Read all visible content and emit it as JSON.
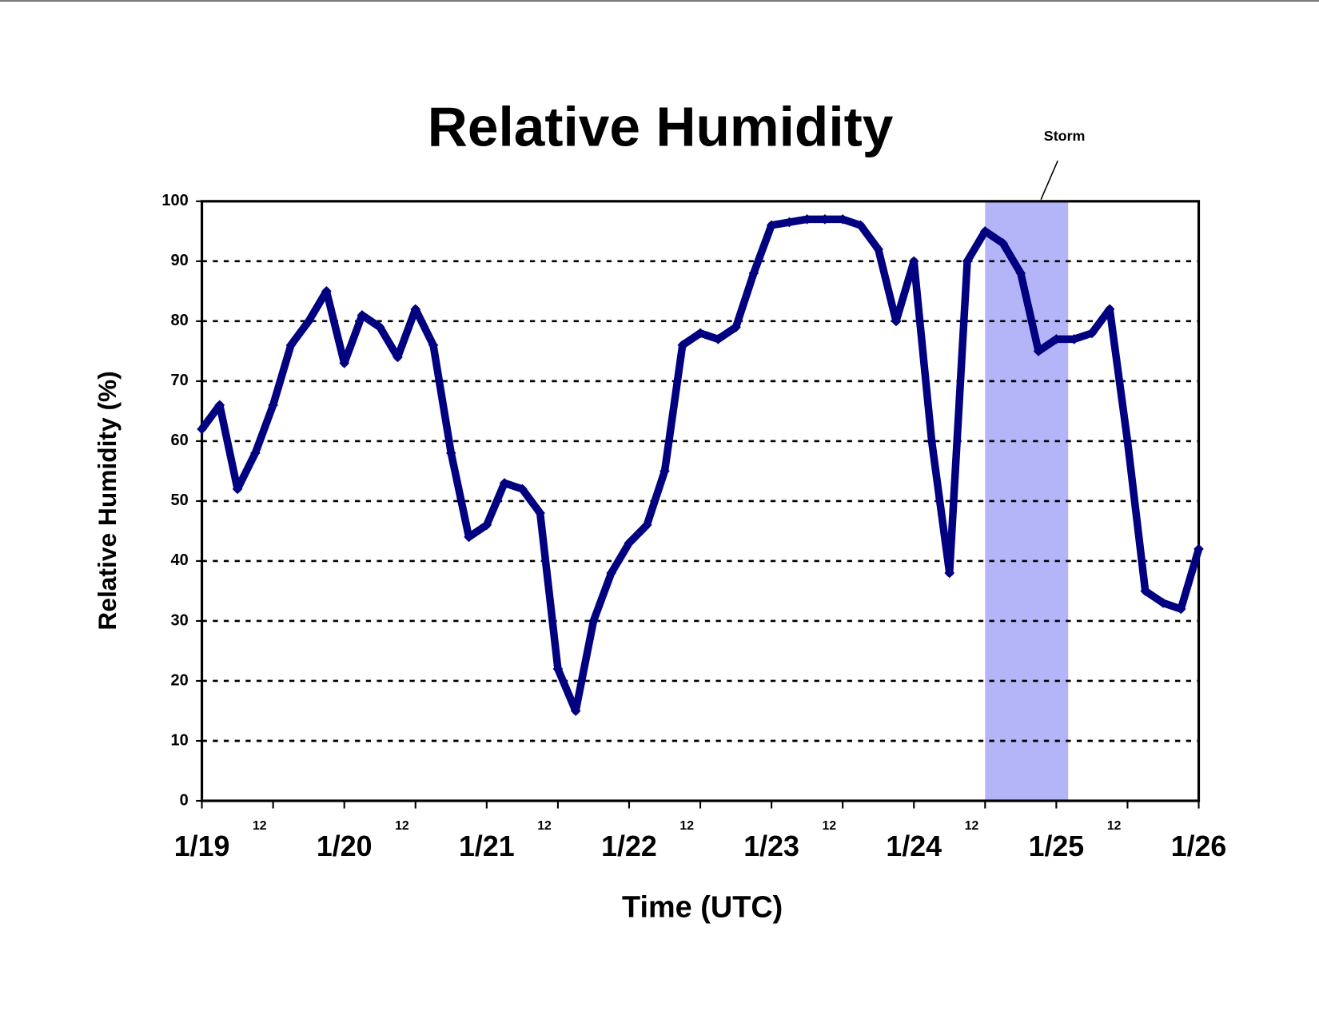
{
  "chart_data": {
    "type": "scatter",
    "title": "Relative Humidity",
    "x_label": "Time (UTC)",
    "y_label": "Relative Humidity (%)",
    "x": [
      0,
      3,
      6,
      9,
      12,
      15,
      18,
      21,
      24,
      27,
      30,
      33,
      36,
      39,
      42,
      45,
      48,
      51,
      54,
      57,
      60,
      63,
      66,
      69,
      72,
      75,
      78,
      81,
      84,
      87,
      90,
      93,
      96,
      99,
      102,
      105,
      108,
      111,
      114,
      117,
      120,
      123,
      126,
      129,
      132,
      135,
      138,
      141,
      144,
      147,
      150,
      153,
      156,
      159,
      162,
      165,
      168
    ],
    "values": [
      62,
      66,
      52,
      58,
      66,
      76,
      80,
      85,
      73,
      81,
      79,
      74,
      82,
      76,
      58,
      44,
      46,
      53,
      52,
      48,
      22,
      15,
      30,
      38,
      43,
      46,
      55,
      76,
      78,
      77,
      79,
      88,
      96,
      96.5,
      97,
      97,
      97,
      96,
      92,
      80,
      90,
      60,
      38,
      90,
      95,
      93,
      88,
      75,
      77,
      77,
      78,
      82,
      60,
      35,
      33,
      32,
      42
    ],
    "color": "#000080",
    "xlim": [
      0,
      168
    ],
    "xticks": [
      {
        "value": 0,
        "label": "1/19"
      },
      {
        "value": 12,
        "label": "12"
      },
      {
        "value": 24,
        "label": "1/20"
      },
      {
        "value": 36,
        "label": "12"
      },
      {
        "value": 48,
        "label": "1/21"
      },
      {
        "value": 60,
        "label": "12"
      },
      {
        "value": 72,
        "label": "1/22"
      },
      {
        "value": 84,
        "label": "12"
      },
      {
        "value": 96,
        "label": "1/23"
      },
      {
        "value": 108,
        "label": "12"
      },
      {
        "value": 120,
        "label": "1/24"
      },
      {
        "value": 132,
        "label": "12"
      },
      {
        "value": 144,
        "label": "1/25"
      },
      {
        "value": 156,
        "label": "12"
      },
      {
        "value": 168,
        "label": "1/26"
      }
    ],
    "ylim": [
      0,
      100
    ],
    "yticks": [
      0,
      10,
      20,
      30,
      40,
      50,
      60,
      70,
      80,
      90,
      100
    ],
    "grid": true,
    "storm": {
      "label": "Storm",
      "xrange": [
        132,
        146
      ],
      "color": "#b4b4f8"
    }
  }
}
